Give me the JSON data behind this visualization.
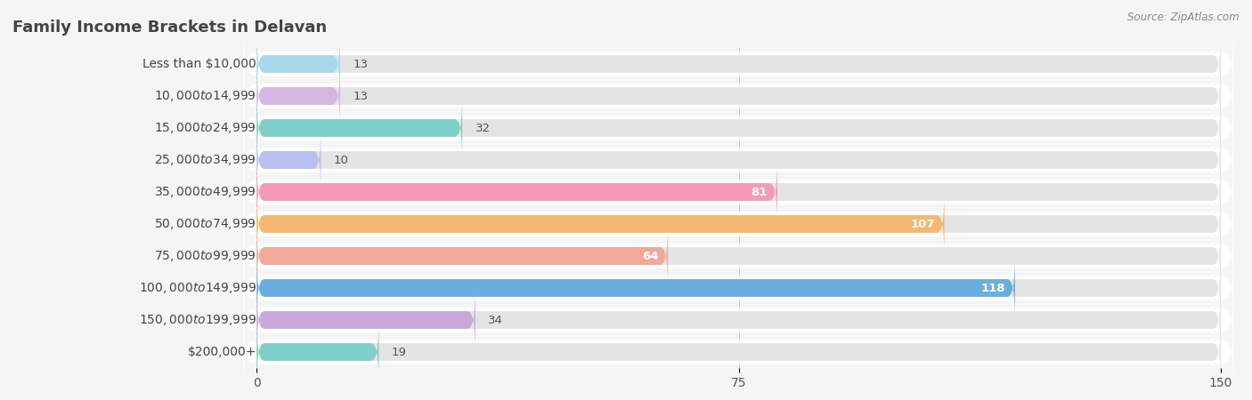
{
  "title": "Family Income Brackets in Delavan",
  "source": "Source: ZipAtlas.com",
  "categories": [
    "Less than $10,000",
    "$10,000 to $14,999",
    "$15,000 to $24,999",
    "$25,000 to $34,999",
    "$35,000 to $49,999",
    "$50,000 to $74,999",
    "$75,000 to $99,999",
    "$100,000 to $149,999",
    "$150,000 to $199,999",
    "$200,000+"
  ],
  "values": [
    13,
    13,
    32,
    10,
    81,
    107,
    64,
    118,
    34,
    19
  ],
  "bar_colors": [
    "#a8d8ea",
    "#d4b8e0",
    "#7ecfc8",
    "#b8c0f0",
    "#f49ab8",
    "#f4b870",
    "#f0a898",
    "#6aaee0",
    "#c8a8d8",
    "#7ecfc8"
  ],
  "xlim": [
    0,
    150
  ],
  "xticks": [
    0,
    75,
    150
  ],
  "background_color": "#f5f5f5",
  "bar_bg_color": "#e4e4e4",
  "title_fontsize": 13,
  "tick_fontsize": 10,
  "cat_fontsize": 10,
  "value_fontsize": 9.5
}
